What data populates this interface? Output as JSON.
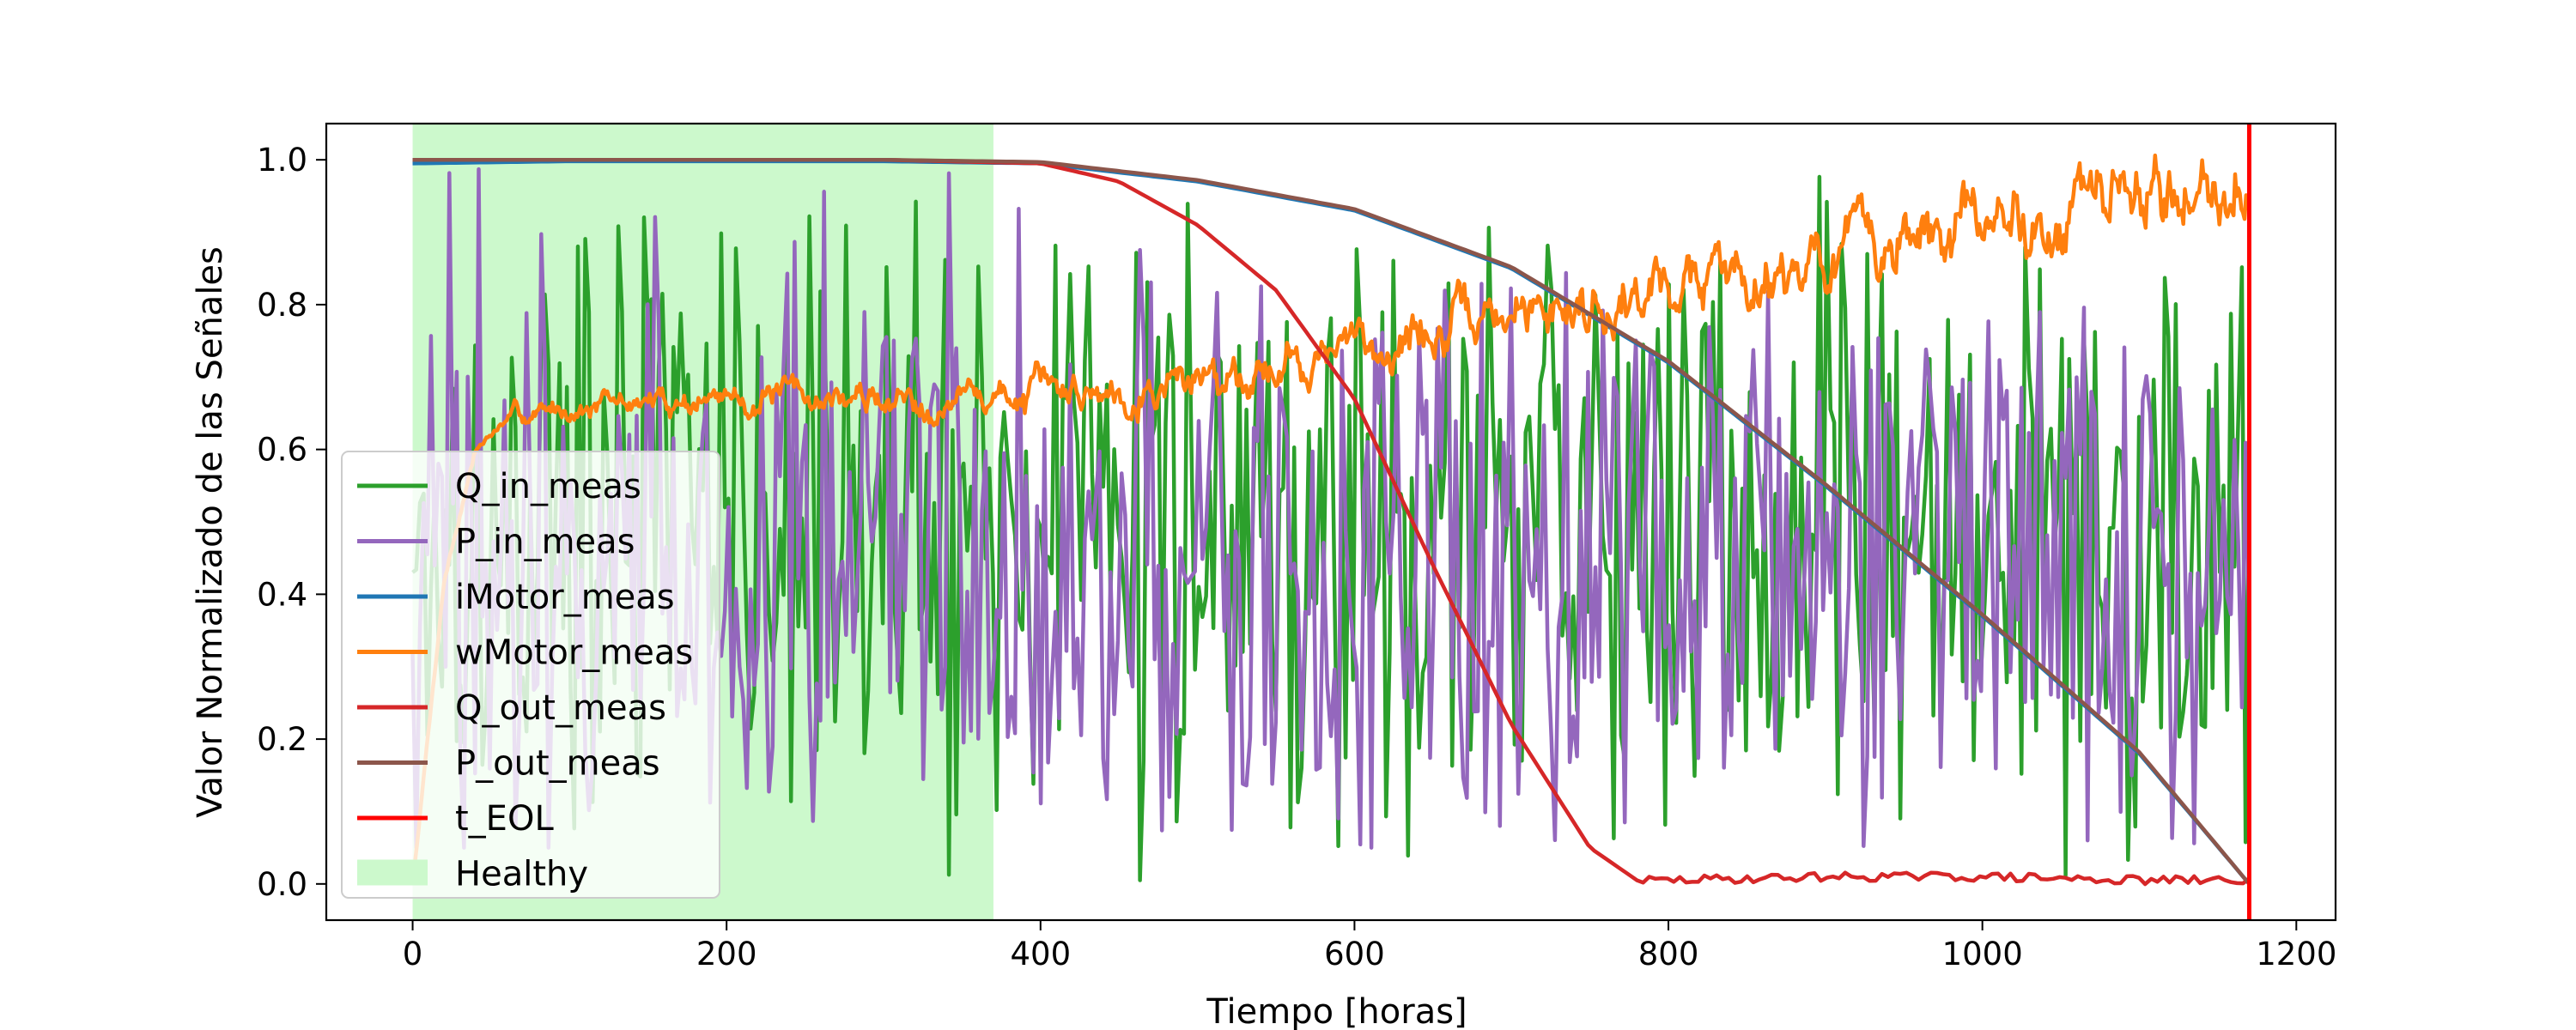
{
  "chart_data": {
    "type": "line",
    "title": "",
    "xlabel": "Tiempo [horas]",
    "ylabel": "Valor Normalizado de las Señales",
    "xlim": [
      -55,
      1225
    ],
    "ylim": [
      -0.05,
      1.05
    ],
    "xticks": [
      0,
      200,
      400,
      600,
      800,
      1000,
      1200
    ],
    "yticks": [
      0.0,
      0.2,
      0.4,
      0.6,
      0.8,
      1.0
    ],
    "xtick_labels": [
      "0",
      "200",
      "400",
      "600",
      "800",
      "1000",
      "1200"
    ],
    "ytick_labels": [
      "0.0",
      "0.2",
      "0.4",
      "0.6",
      "0.8",
      "1.0"
    ],
    "grid": false,
    "legend_position": "center-left",
    "healthy_region": {
      "x_start": 0,
      "x_end": 370,
      "color": "#ccf9cc",
      "label": "Healthy"
    },
    "eol": {
      "x": 1170,
      "color": "#ff0000",
      "label": "t_EOL"
    },
    "series": [
      {
        "name": "Q_in_meas",
        "color": "#2ca02c",
        "style": "noise",
        "approx_mean": 0.5,
        "approx_range": [
          0.0,
          1.0
        ],
        "x": [
          0,
          1170
        ]
      },
      {
        "name": "P_in_meas",
        "color": "#9467bd",
        "style": "noise",
        "approx_mean": 0.45,
        "approx_range": [
          0.05,
          1.0
        ],
        "x": [
          0,
          1170
        ]
      },
      {
        "name": "iMotor_meas",
        "color": "#1f77b4",
        "style": "smooth",
        "x": [
          0,
          100,
          200,
          300,
          400,
          500,
          600,
          700,
          800,
          900,
          1000,
          1100,
          1170
        ],
        "y": [
          0.995,
          0.998,
          0.998,
          0.998,
          0.995,
          0.97,
          0.93,
          0.85,
          0.72,
          0.55,
          0.37,
          0.18,
          0.0
        ]
      },
      {
        "name": "wMotor_meas",
        "color": "#ff7f0e",
        "style": "trend",
        "x": [
          0,
          20,
          40,
          60,
          100,
          200,
          300,
          400,
          500,
          600,
          700,
          800,
          900,
          1000,
          1100,
          1170
        ],
        "y": [
          0.0,
          0.42,
          0.6,
          0.64,
          0.66,
          0.67,
          0.67,
          0.675,
          0.7,
          0.74,
          0.78,
          0.83,
          0.87,
          0.9,
          0.95,
          0.97
        ]
      },
      {
        "name": "Q_out_meas",
        "color": "#d62728",
        "style": "smooth",
        "x": [
          0,
          100,
          200,
          300,
          400,
          450,
          500,
          550,
          600,
          650,
          700,
          750,
          780,
          800,
          900,
          1000,
          1100,
          1170
        ],
        "y": [
          1.0,
          1.0,
          1.0,
          1.0,
          0.995,
          0.97,
          0.91,
          0.82,
          0.67,
          0.44,
          0.22,
          0.05,
          0.005,
          0.005,
          0.01,
          0.01,
          0.005,
          0.005
        ]
      },
      {
        "name": "P_out_meas",
        "color": "#8c564b",
        "style": "smooth",
        "x": [
          0,
          100,
          200,
          300,
          400,
          500,
          600,
          700,
          800,
          900,
          1000,
          1100,
          1170
        ],
        "y": [
          1.0,
          1.0,
          1.0,
          1.0,
          0.997,
          0.972,
          0.932,
          0.852,
          0.722,
          0.552,
          0.372,
          0.182,
          0.0
        ]
      }
    ]
  }
}
